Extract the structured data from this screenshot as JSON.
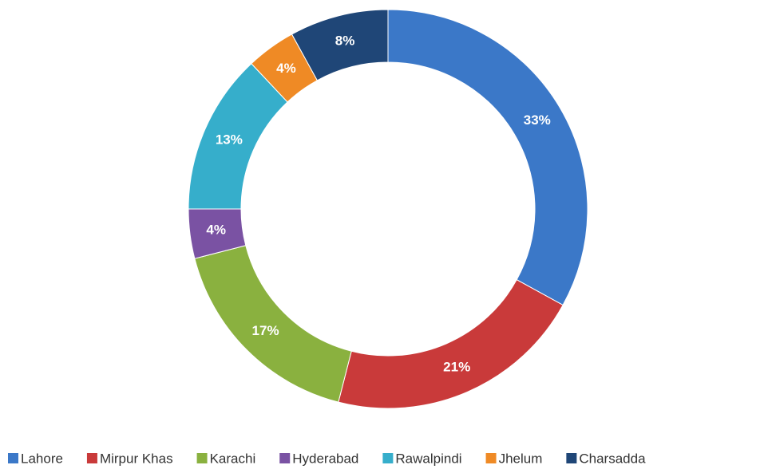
{
  "chart_data": {
    "type": "donut",
    "categories": [
      "Lahore",
      "Mirpur Khas",
      "Karachi",
      "Hyderabad",
      "Rawalpindi",
      "Jhelum",
      "Charsadda"
    ],
    "values": [
      33,
      21,
      17,
      4,
      13,
      4,
      8
    ],
    "value_labels": [
      "33%",
      "21%",
      "17%",
      "4%",
      "13%",
      "4%",
      "8%"
    ],
    "colors": [
      "#3b78c8",
      "#c93a3a",
      "#8ab13f",
      "#7a52a3",
      "#36aecb",
      "#ef8a25",
      "#1f4677"
    ],
    "legend": "bottom"
  }
}
